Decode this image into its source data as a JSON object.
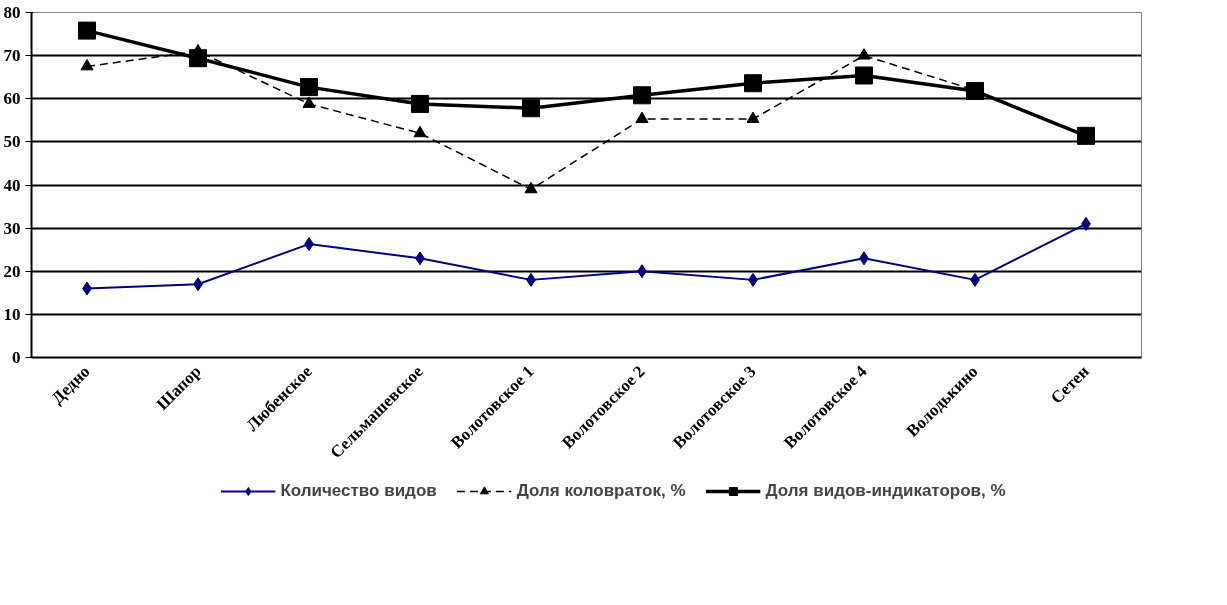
{
  "chart_data": {
    "type": "line",
    "categories": [
      "Дедно",
      "Шапор",
      "Любенское",
      "Сельмашевское",
      "Волотовское 1",
      "Волотовское 2",
      "Волотовское 3",
      "Волотовское 4",
      "Володькино",
      "Сетен"
    ],
    "series": [
      {
        "name": "Количество видов",
        "color": "#000080",
        "marker": "diamond",
        "line_style": "solid",
        "values": [
          16,
          17,
          26.3,
          23,
          18,
          20,
          18,
          23,
          18,
          31
        ]
      },
      {
        "name": "Доля коловраток, %",
        "color": "#000000",
        "marker": "triangle",
        "line_style": "dashed",
        "values": [
          67.5,
          71,
          58.8,
          52,
          39,
          55.3,
          55.3,
          70,
          62,
          51.5
        ]
      },
      {
        "name": "Доля видов-индикаторов, %",
        "color": "#000000",
        "marker": "square",
        "line_style": "solid",
        "values": [
          75.8,
          69.4,
          62.7,
          58.8,
          57.8,
          60.8,
          63.6,
          65.4,
          61.8,
          51.4
        ]
      }
    ],
    "ylim": [
      0,
      80
    ],
    "yticks": [
      0,
      10,
      20,
      30,
      40,
      50,
      60,
      70,
      80
    ],
    "grid": "y",
    "legend": "bottom"
  }
}
